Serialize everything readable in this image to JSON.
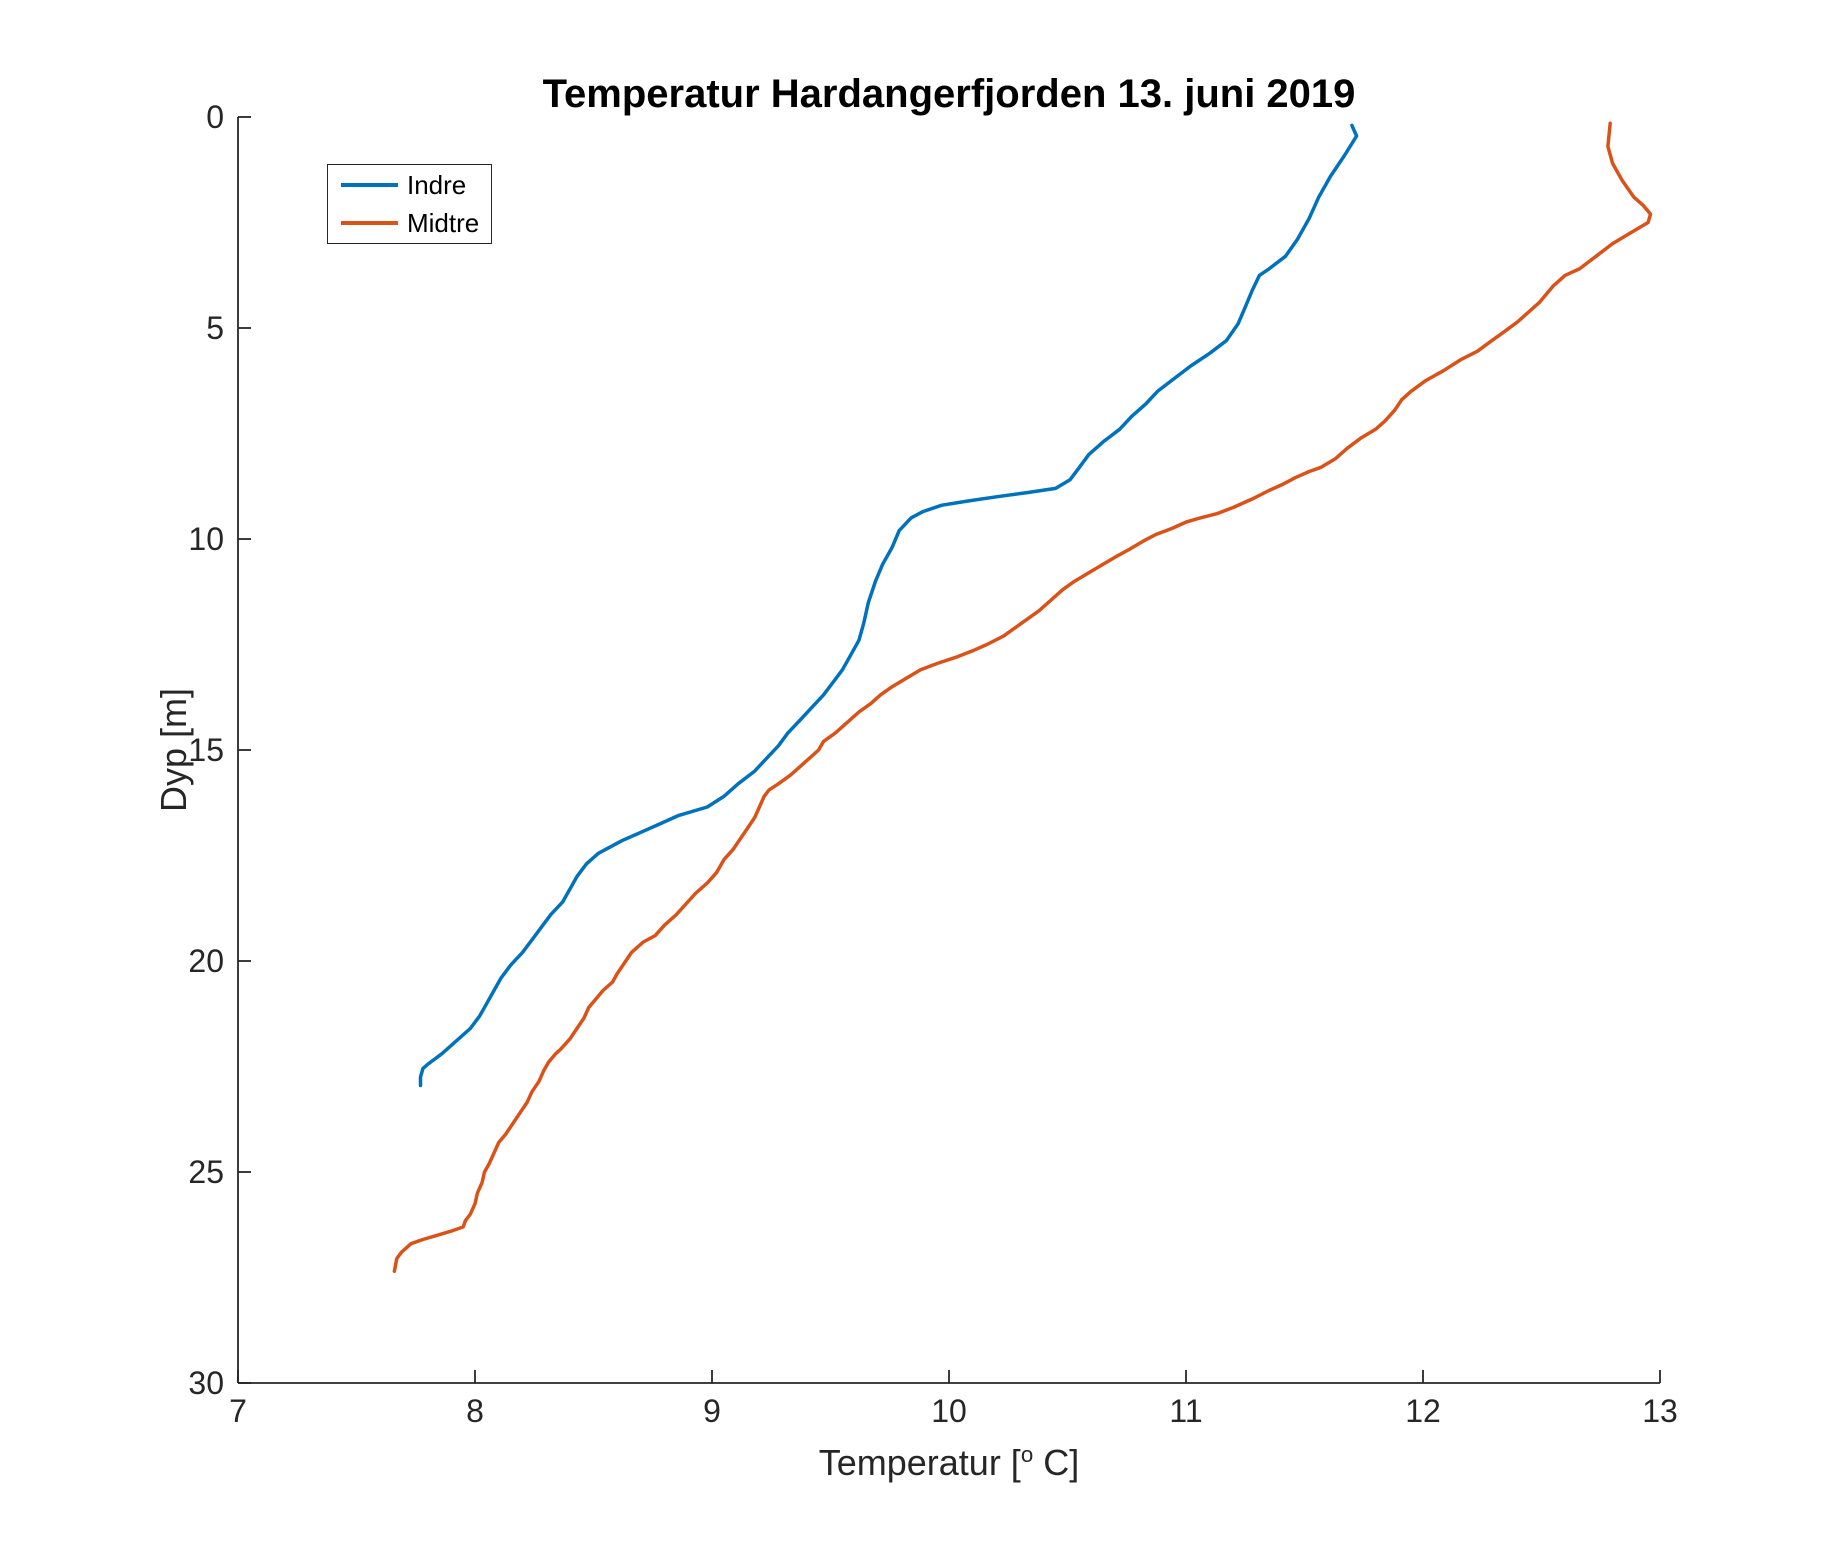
{
  "title": "Temperatur Hardangerfjorden 13. juni 2019",
  "axes": {
    "xlabel_prefix": "Temperatur [",
    "xlabel_sup": "o",
    "xlabel_suffix": " C]",
    "ylabel": "Dyp [m]",
    "x_ticks": [
      7,
      8,
      9,
      10,
      11,
      12,
      13
    ],
    "y_ticks": [
      0,
      5,
      10,
      15,
      20,
      25,
      30
    ],
    "axis_color": "#262626"
  },
  "chart_data": {
    "type": "line",
    "title": "Temperatur Hardangerfjorden 13. juni 2019",
    "xlabel": "Temperatur [°C]",
    "ylabel": "Dyp [m]",
    "xlim": [
      7,
      13
    ],
    "ylim": [
      0,
      30
    ],
    "y_axis_inverted_depth": true,
    "grid": false,
    "legend_position": "top-left-inside",
    "point_format": "[temperatur_C, dyp_m]",
    "series": [
      {
        "name": "Indre",
        "color": "#0072BD",
        "points": [
          [
            11.7,
            0.2
          ],
          [
            11.72,
            0.45
          ],
          [
            11.67,
            0.9
          ],
          [
            11.61,
            1.4
          ],
          [
            11.56,
            1.9
          ],
          [
            11.52,
            2.4
          ],
          [
            11.47,
            2.9
          ],
          [
            11.42,
            3.3
          ],
          [
            11.35,
            3.6
          ],
          [
            11.31,
            3.75
          ],
          [
            11.28,
            4.1
          ],
          [
            11.25,
            4.5
          ],
          [
            11.22,
            4.9
          ],
          [
            11.17,
            5.3
          ],
          [
            11.1,
            5.6
          ],
          [
            11.02,
            5.9
          ],
          [
            10.95,
            6.2
          ],
          [
            10.88,
            6.5
          ],
          [
            10.83,
            6.8
          ],
          [
            10.77,
            7.1
          ],
          [
            10.72,
            7.4
          ],
          [
            10.65,
            7.7
          ],
          [
            10.59,
            8.0
          ],
          [
            10.55,
            8.3
          ],
          [
            10.51,
            8.6
          ],
          [
            10.45,
            8.8
          ],
          [
            10.33,
            8.9
          ],
          [
            10.2,
            9.0
          ],
          [
            10.08,
            9.1
          ],
          [
            9.97,
            9.2
          ],
          [
            9.89,
            9.35
          ],
          [
            9.84,
            9.5
          ],
          [
            9.79,
            9.8
          ],
          [
            9.76,
            10.2
          ],
          [
            9.72,
            10.6
          ],
          [
            9.69,
            11.0
          ],
          [
            9.66,
            11.5
          ],
          [
            9.64,
            12.0
          ],
          [
            9.62,
            12.4
          ],
          [
            9.58,
            12.8
          ],
          [
            9.55,
            13.1
          ],
          [
            9.51,
            13.4
          ],
          [
            9.47,
            13.7
          ],
          [
            9.42,
            14.0
          ],
          [
            9.37,
            14.3
          ],
          [
            9.32,
            14.6
          ],
          [
            9.28,
            14.9
          ],
          [
            9.23,
            15.2
          ],
          [
            9.18,
            15.5
          ],
          [
            9.11,
            15.8
          ],
          [
            9.05,
            16.1
          ],
          [
            8.98,
            16.35
          ],
          [
            8.86,
            16.55
          ],
          [
            8.78,
            16.75
          ],
          [
            8.7,
            16.95
          ],
          [
            8.62,
            17.15
          ],
          [
            8.52,
            17.45
          ],
          [
            8.47,
            17.7
          ],
          [
            8.43,
            18.0
          ],
          [
            8.4,
            18.3
          ],
          [
            8.37,
            18.6
          ],
          [
            8.32,
            18.9
          ],
          [
            8.28,
            19.2
          ],
          [
            8.24,
            19.5
          ],
          [
            8.2,
            19.8
          ],
          [
            8.15,
            20.1
          ],
          [
            8.11,
            20.4
          ],
          [
            8.08,
            20.7
          ],
          [
            8.05,
            21.0
          ],
          [
            8.02,
            21.3
          ],
          [
            7.98,
            21.6
          ],
          [
            7.92,
            21.9
          ],
          [
            7.86,
            22.2
          ],
          [
            7.8,
            22.45
          ],
          [
            7.78,
            22.55
          ],
          [
            7.77,
            22.75
          ],
          [
            7.77,
            22.95
          ]
        ]
      },
      {
        "name": "Midtre",
        "color": "#D95319",
        "points": [
          [
            12.79,
            0.15
          ],
          [
            12.78,
            0.7
          ],
          [
            12.8,
            1.1
          ],
          [
            12.84,
            1.5
          ],
          [
            12.89,
            1.9
          ],
          [
            12.93,
            2.1
          ],
          [
            12.96,
            2.3
          ],
          [
            12.95,
            2.5
          ],
          [
            12.89,
            2.7
          ],
          [
            12.8,
            3.0
          ],
          [
            12.73,
            3.3
          ],
          [
            12.66,
            3.6
          ],
          [
            12.6,
            3.75
          ],
          [
            12.55,
            4.0
          ],
          [
            12.49,
            4.4
          ],
          [
            12.44,
            4.65
          ],
          [
            12.4,
            4.85
          ],
          [
            12.34,
            5.1
          ],
          [
            12.29,
            5.3
          ],
          [
            12.23,
            5.55
          ],
          [
            12.16,
            5.75
          ],
          [
            12.09,
            6.0
          ],
          [
            12.01,
            6.25
          ],
          [
            11.95,
            6.5
          ],
          [
            11.91,
            6.7
          ],
          [
            11.88,
            6.95
          ],
          [
            11.84,
            7.2
          ],
          [
            11.8,
            7.4
          ],
          [
            11.74,
            7.6
          ],
          [
            11.68,
            7.85
          ],
          [
            11.63,
            8.1
          ],
          [
            11.57,
            8.3
          ],
          [
            11.52,
            8.4
          ],
          [
            11.46,
            8.55
          ],
          [
            11.41,
            8.7
          ],
          [
            11.35,
            8.85
          ],
          [
            11.28,
            9.05
          ],
          [
            11.2,
            9.25
          ],
          [
            11.13,
            9.4
          ],
          [
            11.06,
            9.5
          ],
          [
            11.0,
            9.6
          ],
          [
            10.94,
            9.75
          ],
          [
            10.87,
            9.9
          ],
          [
            10.82,
            10.05
          ],
          [
            10.76,
            10.25
          ],
          [
            10.71,
            10.4
          ],
          [
            10.65,
            10.6
          ],
          [
            10.59,
            10.8
          ],
          [
            10.53,
            11.0
          ],
          [
            10.48,
            11.2
          ],
          [
            10.43,
            11.45
          ],
          [
            10.38,
            11.7
          ],
          [
            10.33,
            11.9
          ],
          [
            10.28,
            12.1
          ],
          [
            10.23,
            12.3
          ],
          [
            10.16,
            12.5
          ],
          [
            10.1,
            12.65
          ],
          [
            10.03,
            12.8
          ],
          [
            9.95,
            12.95
          ],
          [
            9.88,
            13.1
          ],
          [
            9.82,
            13.3
          ],
          [
            9.76,
            13.5
          ],
          [
            9.71,
            13.7
          ],
          [
            9.67,
            13.9
          ],
          [
            9.62,
            14.1
          ],
          [
            9.57,
            14.35
          ],
          [
            9.52,
            14.6
          ],
          [
            9.47,
            14.8
          ],
          [
            9.45,
            15.0
          ],
          [
            9.41,
            15.2
          ],
          [
            9.37,
            15.4
          ],
          [
            9.33,
            15.6
          ],
          [
            9.28,
            15.8
          ],
          [
            9.24,
            15.95
          ],
          [
            9.22,
            16.1
          ],
          [
            9.2,
            16.35
          ],
          [
            9.18,
            16.6
          ],
          [
            9.15,
            16.85
          ],
          [
            9.12,
            17.1
          ],
          [
            9.09,
            17.35
          ],
          [
            9.05,
            17.6
          ],
          [
            9.02,
            17.9
          ],
          [
            8.98,
            18.15
          ],
          [
            8.93,
            18.4
          ],
          [
            8.89,
            18.65
          ],
          [
            8.85,
            18.9
          ],
          [
            8.8,
            19.15
          ],
          [
            8.76,
            19.4
          ],
          [
            8.71,
            19.55
          ],
          [
            8.66,
            19.8
          ],
          [
            8.63,
            20.05
          ],
          [
            8.6,
            20.3
          ],
          [
            8.58,
            20.5
          ],
          [
            8.54,
            20.7
          ],
          [
            8.51,
            20.9
          ],
          [
            8.48,
            21.1
          ],
          [
            8.46,
            21.35
          ],
          [
            8.43,
            21.6
          ],
          [
            8.4,
            21.85
          ],
          [
            8.36,
            22.1
          ],
          [
            8.34,
            22.2
          ],
          [
            8.31,
            22.4
          ],
          [
            8.29,
            22.6
          ],
          [
            8.27,
            22.85
          ],
          [
            8.24,
            23.1
          ],
          [
            8.22,
            23.35
          ],
          [
            8.19,
            23.6
          ],
          [
            8.16,
            23.85
          ],
          [
            8.13,
            24.1
          ],
          [
            8.1,
            24.3
          ],
          [
            8.08,
            24.55
          ],
          [
            8.06,
            24.8
          ],
          [
            8.04,
            25.0
          ],
          [
            8.03,
            25.25
          ],
          [
            8.01,
            25.5
          ],
          [
            8.0,
            25.75
          ],
          [
            7.98,
            26.0
          ],
          [
            7.96,
            26.15
          ],
          [
            7.95,
            26.3
          ],
          [
            7.9,
            26.4
          ],
          [
            7.84,
            26.5
          ],
          [
            7.78,
            26.6
          ],
          [
            7.73,
            26.7
          ],
          [
            7.69,
            26.9
          ],
          [
            7.67,
            27.05
          ],
          [
            7.66,
            27.35
          ]
        ]
      }
    ]
  }
}
